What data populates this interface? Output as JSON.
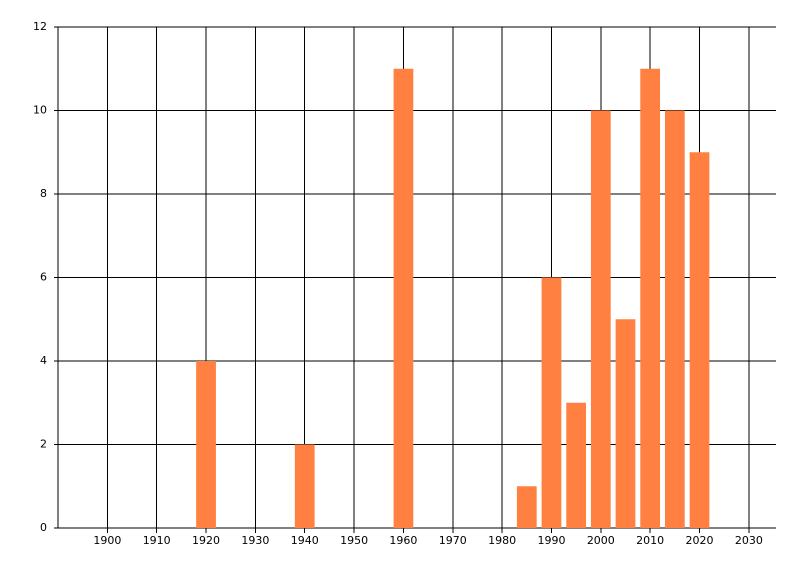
{
  "chart_data": {
    "type": "bar",
    "x": [
      1920,
      1940,
      1960,
      1985,
      1990,
      1995,
      2000,
      2005,
      2010,
      2015,
      2020
    ],
    "values": [
      4,
      2,
      11,
      1,
      6,
      3,
      10,
      5,
      11,
      10,
      9
    ],
    "color": "#ff8040",
    "xlim": [
      1890,
      2035.5
    ],
    "xticks": [
      1900,
      1910,
      1920,
      1930,
      1940,
      1950,
      1960,
      1970,
      1980,
      1990,
      2000,
      2010,
      2020,
      2030
    ],
    "ylim": [
      0,
      12
    ],
    "yticks": [
      0,
      2,
      4,
      6,
      8,
      10,
      12
    ],
    "grid": true
  }
}
